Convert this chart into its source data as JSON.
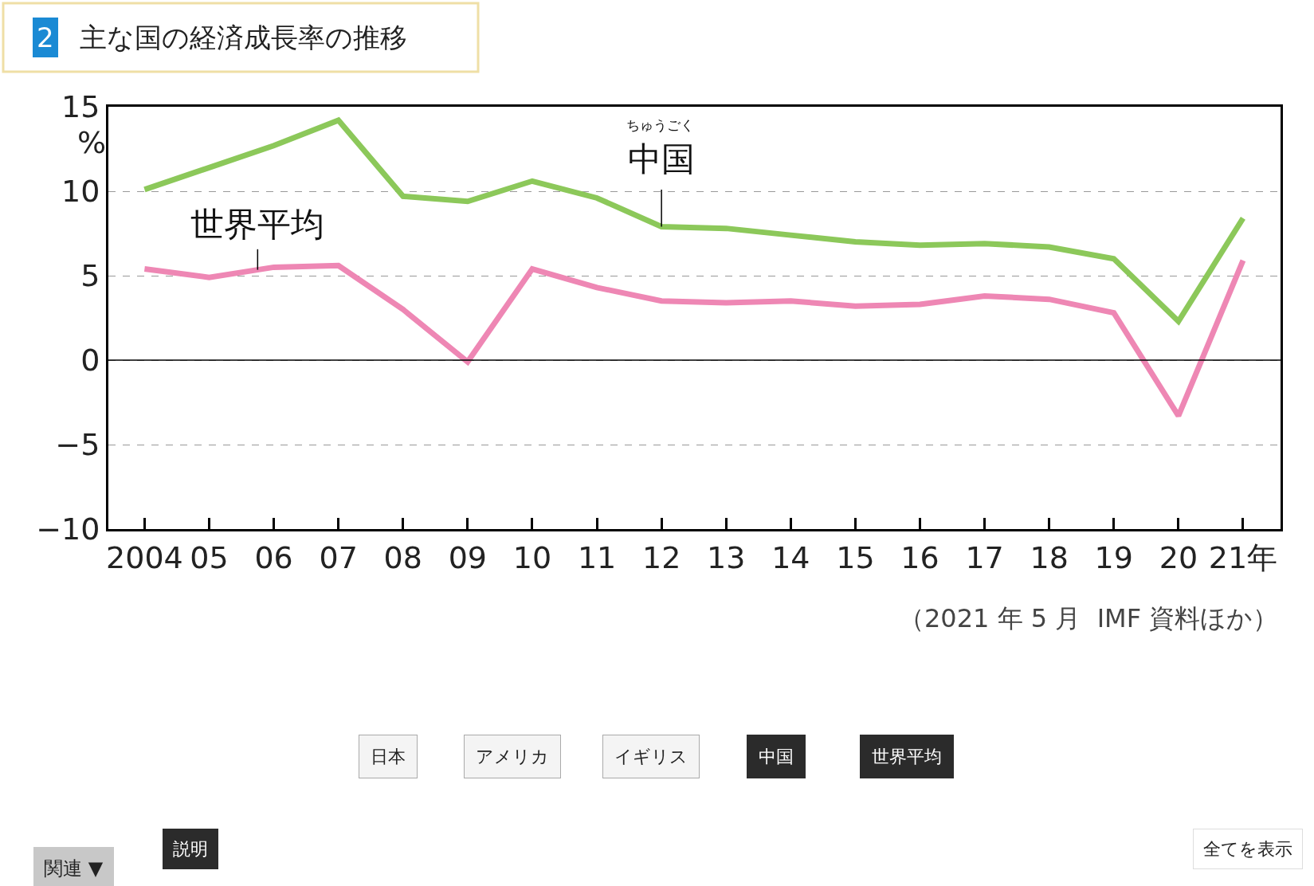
{
  "chart_data": {
    "type": "line",
    "title": "主な国の経済成長率の推移",
    "ylabel": "%",
    "categories": [
      "2004",
      "05",
      "06",
      "07",
      "08",
      "09",
      "10",
      "11",
      "12",
      "13",
      "14",
      "15",
      "16",
      "17",
      "18",
      "19",
      "20",
      "21年"
    ],
    "series": [
      {
        "name": "中国",
        "color": "#8cc85a",
        "values": [
          10.1,
          11.4,
          12.7,
          14.2,
          9.7,
          9.4,
          10.6,
          9.6,
          7.9,
          7.8,
          7.4,
          7.0,
          6.8,
          6.9,
          6.7,
          6.0,
          2.3,
          8.4
        ]
      },
      {
        "name": "世界平均",
        "color": "#ee87b4",
        "values": [
          5.4,
          4.9,
          5.5,
          5.6,
          3.0,
          -0.1,
          5.4,
          4.3,
          3.5,
          3.4,
          3.5,
          3.2,
          3.3,
          3.8,
          3.6,
          2.8,
          -3.3,
          5.9
        ]
      }
    ],
    "ylim": [
      -10,
      15
    ],
    "yticks": [
      -10,
      -5,
      0,
      5,
      10,
      15
    ],
    "grid": "y",
    "ref_lines": [
      {
        "axis": "y",
        "value": 0
      }
    ],
    "annotations": [
      "2",
      "ちゅうごく",
      "（2021 年 5 月  IMF 資料ほか）",
      "日本",
      "アメリカ",
      "イギリス",
      "中国",
      "世界平均",
      "説明",
      "関連 ▼",
      "全てを表示"
    ]
  }
}
